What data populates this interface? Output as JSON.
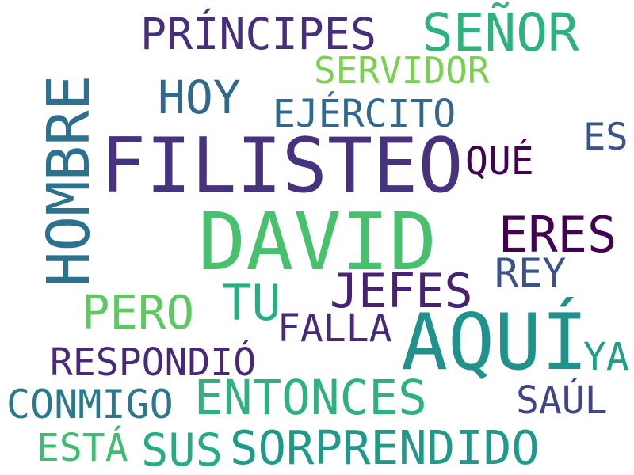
{
  "words": {
    "filisteo": {
      "text": "FILISTEO",
      "color": "#46327e"
    },
    "david": {
      "text": "DAVID",
      "color": "#48c16e"
    },
    "hombre": {
      "text": "HOMBRE",
      "color": "#2c728e"
    },
    "aqui": {
      "text": "AQUÍ",
      "color": "#21918c"
    },
    "senor": {
      "text": "SEÑOR",
      "color": "#2db27d"
    },
    "principes": {
      "text": "PRÍNCIPES",
      "color": "#472d7b"
    },
    "servidor": {
      "text": "SERVIDOR",
      "color": "#7ad151"
    },
    "hoy": {
      "text": "HOY",
      "color": "#31688e"
    },
    "ejercito": {
      "text": "EJÉRCITO",
      "color": "#31688e"
    },
    "es": {
      "text": "ES",
      "color": "#3b528b"
    },
    "que": {
      "text": "QUÉ",
      "color": "#440154"
    },
    "eres": {
      "text": "ERES",
      "color": "#440154"
    },
    "rey": {
      "text": "REY",
      "color": "#3b528b"
    },
    "jefes": {
      "text": "JEFES",
      "color": "#482173"
    },
    "tu": {
      "text": "TU",
      "color": "#27ad81"
    },
    "pero": {
      "text": "PERO",
      "color": "#5ec962"
    },
    "falla": {
      "text": "FALLA",
      "color": "#482878"
    },
    "ya": {
      "text": "YA",
      "color": "#1f9e89"
    },
    "respondio": {
      "text": "RESPONDIÓ",
      "color": "#482878"
    },
    "entonces": {
      "text": "ENTONCES",
      "color": "#2db27d"
    },
    "saul": {
      "text": "SAÚL",
      "color": "#414487"
    },
    "conmigo": {
      "text": "CONMIGO",
      "color": "#2a788e"
    },
    "esta": {
      "text": "ESTÁ",
      "color": "#3fbc73"
    },
    "sus": {
      "text": "SUS",
      "color": "#25ac82"
    },
    "sorprendido": {
      "text": "SORPRENDIDO",
      "color": "#1f9a8a"
    }
  }
}
